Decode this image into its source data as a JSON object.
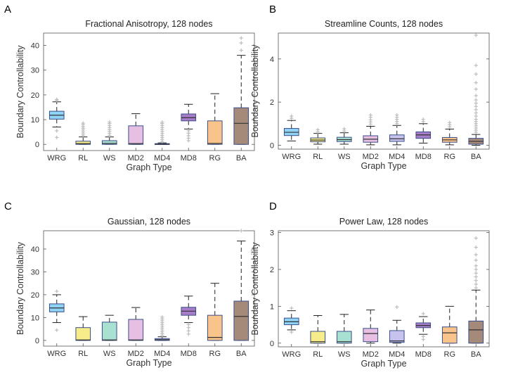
{
  "figure": {
    "xlabel": "Graph Type",
    "ylabel": "Boundary Controllability",
    "outlier_color": "#bdbdbd",
    "colors": {
      "WRG": "#8fd3f7",
      "RL": "#f7ec8a",
      "WS": "#a8e0d2",
      "MD2": "#e7bfe2",
      "MD4": "#c7c2ee",
      "MD8": "#a77cc9",
      "RG": "#f9c48c",
      "BA": "#a58a7a"
    }
  },
  "chart_data": [
    {
      "panel": "A",
      "type": "box",
      "title": "Fractional Anisotropy, 128 nodes",
      "xlabel": "Graph Type",
      "ylabel": "Boundary Controllability",
      "categories": [
        "WRG",
        "RL",
        "WS",
        "MD2",
        "MD4",
        "MD8",
        "RG",
        "BA"
      ],
      "yticks": [
        0,
        10,
        20,
        30,
        40
      ],
      "ylim": [
        -2.5,
        45
      ],
      "boxes": [
        {
          "name": "WRG",
          "q1": 10.2,
          "median": 11.8,
          "q3": 13.4,
          "wlow": 7,
          "whigh": 17.2,
          "outliers": [
            2.8,
            5.5,
            17.8,
            18.2
          ]
        },
        {
          "name": "RL",
          "q1": 0,
          "median": 0.3,
          "q3": 1.3,
          "wlow": 0,
          "whigh": 3,
          "outliers": [
            3.5,
            4.2,
            5,
            5.8,
            6.5,
            7.2,
            8,
            8.6
          ]
        },
        {
          "name": "WS",
          "q1": 0,
          "median": 0.4,
          "q3": 1.5,
          "wlow": 0,
          "whigh": 3,
          "outliers": [
            3.6,
            4.4,
            5.2,
            6,
            6.8,
            7.6,
            8.4,
            9
          ]
        },
        {
          "name": "MD2",
          "q1": 0,
          "median": 0.3,
          "q3": 7.5,
          "wlow": 0,
          "whigh": 12.4,
          "outliers": []
        },
        {
          "name": "MD4",
          "q1": 0,
          "median": 0.05,
          "q3": 0.3,
          "wlow": 0,
          "whigh": 0.6,
          "outliers": [
            1.2,
            2,
            2.8,
            3.6,
            4.4,
            5.2,
            6,
            6.8,
            7.6,
            8.4,
            9
          ]
        },
        {
          "name": "MD8",
          "q1": 9.5,
          "median": 10.8,
          "q3": 12.3,
          "wlow": 6.2,
          "whigh": 16.2,
          "outliers": [
            1.5,
            2.5,
            3.5,
            4.5,
            5.5
          ]
        },
        {
          "name": "RG",
          "q1": 0,
          "median": 0.4,
          "q3": 9.5,
          "wlow": 0,
          "whigh": 20.5,
          "outliers": []
        },
        {
          "name": "BA",
          "q1": 0,
          "median": 8.5,
          "q3": 14.8,
          "wlow": 0,
          "whigh": 36,
          "outliers": [
            38,
            41,
            43
          ]
        }
      ]
    },
    {
      "panel": "B",
      "type": "box",
      "title": "Streamline Counts, 128 nodes",
      "xlabel": "Graph Type",
      "ylabel": "Boundary Controllability",
      "categories": [
        "WRG",
        "RL",
        "WS",
        "MD2",
        "MD4",
        "MD8",
        "RG",
        "BA"
      ],
      "yticks": [
        0,
        2,
        4
      ],
      "ylim": [
        -0.18,
        5.2
      ],
      "boxes": [
        {
          "name": "WRG",
          "q1": 0.45,
          "median": 0.6,
          "q3": 0.78,
          "wlow": 0.2,
          "whigh": 1.15,
          "outliers": [
            1.25,
            1.35
          ]
        },
        {
          "name": "RL",
          "q1": 0.16,
          "median": 0.24,
          "q3": 0.34,
          "wlow": 0.05,
          "whigh": 0.55,
          "outliers": [
            0.62,
            0.72
          ]
        },
        {
          "name": "WS",
          "q1": 0.17,
          "median": 0.26,
          "q3": 0.37,
          "wlow": 0.05,
          "whigh": 0.58,
          "outliers": [
            0.66,
            0.76
          ]
        },
        {
          "name": "MD2",
          "q1": 0.14,
          "median": 0.28,
          "q3": 0.44,
          "wlow": 0.02,
          "whigh": 0.88,
          "outliers": [
            0.98,
            1.08,
            1.18,
            1.3,
            1.4
          ]
        },
        {
          "name": "MD4",
          "q1": 0.18,
          "median": 0.3,
          "q3": 0.48,
          "wlow": 0.02,
          "whigh": 0.92,
          "outliers": [
            1.0,
            1.1,
            1.2,
            1.3,
            1.4
          ]
        },
        {
          "name": "MD8",
          "q1": 0.32,
          "median": 0.48,
          "q3": 0.62,
          "wlow": 0.1,
          "whigh": 1.0,
          "outliers": [
            1.1,
            1.2
          ]
        },
        {
          "name": "RG",
          "q1": 0.14,
          "median": 0.25,
          "q3": 0.36,
          "wlow": 0.02,
          "whigh": 0.75,
          "outliers": [
            0.85,
            0.95,
            1.05
          ]
        },
        {
          "name": "BA",
          "q1": 0.05,
          "median": 0.18,
          "q3": 0.32,
          "wlow": 0,
          "whigh": 0.5,
          "outliers": [
            0.6,
            0.7,
            0.8,
            0.9,
            1.0,
            1.1,
            1.2,
            1.35,
            1.5,
            1.65,
            1.8,
            1.95,
            2.1,
            2.3,
            2.6,
            2.9,
            3.3,
            3.7,
            5.1
          ]
        }
      ]
    },
    {
      "panel": "C",
      "type": "box",
      "title": "Gaussian, 128 nodes",
      "xlabel": "Graph Type",
      "ylabel": "Boundary Controllability",
      "categories": [
        "WRG",
        "RL",
        "WS",
        "MD2",
        "MD4",
        "MD8",
        "RG",
        "BA"
      ],
      "yticks": [
        0,
        10,
        20,
        30,
        40
      ],
      "ylim": [
        -2.5,
        48
      ],
      "boxes": [
        {
          "name": "WRG",
          "q1": 12.5,
          "median": 14.2,
          "q3": 16,
          "wlow": 7.8,
          "whigh": 20,
          "outliers": [
            4.5,
            21.5
          ]
        },
        {
          "name": "RL",
          "q1": 0,
          "median": 0.2,
          "q3": 5.6,
          "wlow": 0,
          "whigh": 10.4,
          "outliers": []
        },
        {
          "name": "WS",
          "q1": 0,
          "median": 0.2,
          "q3": 8,
          "wlow": 0,
          "whigh": 11,
          "outliers": []
        },
        {
          "name": "MD2",
          "q1": 0,
          "median": 0.2,
          "q3": 9.2,
          "wlow": 0,
          "whigh": 14.4,
          "outliers": []
        },
        {
          "name": "MD4",
          "q1": 0,
          "median": 0.3,
          "q3": 0.8,
          "wlow": 0,
          "whigh": 1.6,
          "outliers": [
            2.2,
            3,
            3.8,
            4.6,
            5.4,
            6.2,
            7,
            7.8,
            8.6,
            9.4,
            10.2
          ]
        },
        {
          "name": "MD8",
          "q1": 11,
          "median": 12.8,
          "q3": 14.5,
          "wlow": 7.8,
          "whigh": 19.4,
          "outliers": [
            2.8,
            4.2,
            5.6,
            7
          ]
        },
        {
          "name": "RG",
          "q1": 0,
          "median": 1.3,
          "q3": 11,
          "wlow": 0,
          "whigh": 25,
          "outliers": []
        },
        {
          "name": "BA",
          "q1": 0,
          "median": 10.5,
          "q3": 17.2,
          "wlow": 0,
          "whigh": 43.5,
          "outliers": [
            48
          ]
        }
      ]
    },
    {
      "panel": "D",
      "type": "box",
      "title": "Power Law, 128 nodes",
      "xlabel": "Graph Type",
      "ylabel": "Boundary Controllability",
      "categories": [
        "WRG",
        "RL",
        "WS",
        "MD2",
        "MD4",
        "MD8",
        "RG",
        "BA"
      ],
      "yticks": [
        0,
        1,
        2,
        3
      ],
      "ylim": [
        -0.1,
        3.05
      ],
      "boxes": [
        {
          "name": "WRG",
          "q1": 0.5,
          "median": 0.58,
          "q3": 0.68,
          "wlow": 0.36,
          "whigh": 0.88,
          "outliers": [
            0.3,
            0.95
          ]
        },
        {
          "name": "RL",
          "q1": 0,
          "median": 0.04,
          "q3": 0.32,
          "wlow": 0,
          "whigh": 0.75,
          "outliers": []
        },
        {
          "name": "WS",
          "q1": 0,
          "median": 0.04,
          "q3": 0.32,
          "wlow": 0,
          "whigh": 0.78,
          "outliers": []
        },
        {
          "name": "MD2",
          "q1": 0.04,
          "median": 0.26,
          "q3": 0.4,
          "wlow": 0,
          "whigh": 0.9,
          "outliers": []
        },
        {
          "name": "MD4",
          "q1": 0.02,
          "median": 0.06,
          "q3": 0.34,
          "wlow": 0,
          "whigh": 0.62,
          "outliers": [
            0.98
          ]
        },
        {
          "name": "MD8",
          "q1": 0.42,
          "median": 0.48,
          "q3": 0.55,
          "wlow": 0.24,
          "whigh": 0.72,
          "outliers": [
            0.1,
            0.18,
            0.8
          ]
        },
        {
          "name": "RG",
          "q1": 0,
          "median": 0.28,
          "q3": 0.44,
          "wlow": 0,
          "whigh": 1.0,
          "outliers": []
        },
        {
          "name": "BA",
          "q1": 0,
          "median": 0.36,
          "q3": 0.6,
          "wlow": 0,
          "whigh": 1.44,
          "outliers": [
            1.5,
            1.6,
            1.7,
            1.8,
            1.9,
            2.0,
            2.1,
            2.25,
            2.4,
            2.6,
            2.85
          ]
        }
      ]
    }
  ]
}
